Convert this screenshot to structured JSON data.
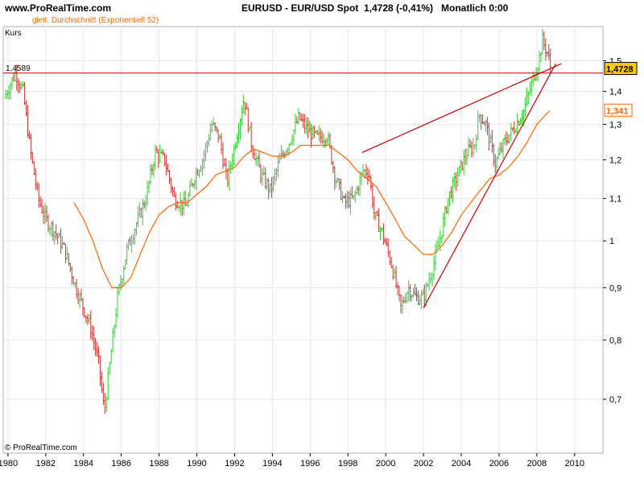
{
  "header": {
    "site": "www.ProRealTime.com",
    "instrument": "EURUSD - EUR/USD Spot",
    "quote": "1,4728 (-0,41%)",
    "period": "Monatlich  0:00"
  },
  "copyright": "© ProRealTime.com",
  "colors": {
    "background": "#ffffff",
    "grid": "#e6e6e6",
    "up_bar": "#33cc33",
    "down_bar": "#cc3333",
    "ema": "#ff6600",
    "trendline": "#cc0000",
    "last_price_box": "#ffcc00"
  },
  "chart_data": {
    "type": "ohlc",
    "legend": {
      "primary": "Kurs",
      "indicator": "gleit. Durchschnitt (Exponentiell 52)"
    },
    "x_ticks": [
      "1980",
      "1982",
      "1984",
      "1986",
      "1988",
      "1990",
      "1992",
      "1994",
      "1996",
      "1998",
      "2000",
      "2002",
      "2004",
      "2006",
      "2008",
      "2010"
    ],
    "y_ticks": [
      "0,7",
      "0,8",
      "0,9",
      "1",
      "1,1",
      "1,2",
      "1,3",
      "1,4",
      "1,5"
    ],
    "y_tick_values": [
      0.7,
      0.8,
      0.9,
      1.0,
      1.1,
      1.2,
      1.3,
      1.4,
      1.5
    ],
    "scale": "log",
    "xlim": [
      1979.75,
      2011.5
    ],
    "ylim": [
      0.62,
      1.62
    ],
    "grid": true,
    "price_path": [
      [
        1979.8,
        1.38
      ],
      [
        1980.1,
        1.42
      ],
      [
        1980.4,
        1.46
      ],
      [
        1980.8,
        1.4
      ],
      [
        1981.2,
        1.22
      ],
      [
        1981.6,
        1.1
      ],
      [
        1982.0,
        1.05
      ],
      [
        1982.5,
        1.02
      ],
      [
        1983.0,
        0.98
      ],
      [
        1983.6,
        0.9
      ],
      [
        1984.0,
        0.86
      ],
      [
        1984.4,
        0.82
      ],
      [
        1984.8,
        0.76
      ],
      [
        1985.1,
        0.68
      ],
      [
        1985.4,
        0.76
      ],
      [
        1985.8,
        0.88
      ],
      [
        1986.3,
        0.98
      ],
      [
        1986.8,
        1.04
      ],
      [
        1987.3,
        1.1
      ],
      [
        1987.8,
        1.22
      ],
      [
        1988.3,
        1.2
      ],
      [
        1988.8,
        1.1
      ],
      [
        1989.4,
        1.08
      ],
      [
        1989.9,
        1.16
      ],
      [
        1990.3,
        1.2
      ],
      [
        1990.8,
        1.3
      ],
      [
        1991.2,
        1.26
      ],
      [
        1991.6,
        1.14
      ],
      [
        1992.0,
        1.24
      ],
      [
        1992.5,
        1.38
      ],
      [
        1992.9,
        1.24
      ],
      [
        1993.4,
        1.16
      ],
      [
        1993.9,
        1.12
      ],
      [
        1994.4,
        1.2
      ],
      [
        1994.9,
        1.25
      ],
      [
        1995.4,
        1.32
      ],
      [
        1995.9,
        1.28
      ],
      [
        1996.4,
        1.26
      ],
      [
        1996.9,
        1.27
      ],
      [
        1997.3,
        1.16
      ],
      [
        1997.8,
        1.09
      ],
      [
        1998.3,
        1.1
      ],
      [
        1998.8,
        1.17
      ],
      [
        1999.1,
        1.17
      ],
      [
        1999.4,
        1.06
      ],
      [
        1999.8,
        1.02
      ],
      [
        2000.3,
        0.95
      ],
      [
        2000.8,
        0.86
      ],
      [
        2001.2,
        0.9
      ],
      [
        2001.6,
        0.88
      ],
      [
        2002.0,
        0.88
      ],
      [
        2002.4,
        0.93
      ],
      [
        2002.8,
        0.99
      ],
      [
        2003.3,
        1.1
      ],
      [
        2003.8,
        1.16
      ],
      [
        2004.3,
        1.22
      ],
      [
        2004.7,
        1.24
      ],
      [
        2004.95,
        1.33
      ],
      [
        2005.3,
        1.3
      ],
      [
        2005.8,
        1.19
      ],
      [
        2006.3,
        1.25
      ],
      [
        2006.8,
        1.29
      ],
      [
        2007.3,
        1.34
      ],
      [
        2007.8,
        1.44
      ],
      [
        2008.1,
        1.5
      ],
      [
        2008.3,
        1.57
      ],
      [
        2008.6,
        1.52
      ],
      [
        2008.75,
        1.47
      ]
    ],
    "ema52_path": [
      [
        1983.5,
        1.09
      ],
      [
        1984.0,
        1.05
      ],
      [
        1984.5,
        1.0
      ],
      [
        1985.0,
        0.94
      ],
      [
        1985.5,
        0.9
      ],
      [
        1986.0,
        0.9
      ],
      [
        1986.5,
        0.92
      ],
      [
        1987.0,
        0.97
      ],
      [
        1987.5,
        1.02
      ],
      [
        1988.0,
        1.06
      ],
      [
        1988.5,
        1.08
      ],
      [
        1989.0,
        1.09
      ],
      [
        1989.5,
        1.09
      ],
      [
        1990.0,
        1.11
      ],
      [
        1990.5,
        1.13
      ],
      [
        1991.0,
        1.16
      ],
      [
        1991.5,
        1.17
      ],
      [
        1992.0,
        1.18
      ],
      [
        1992.5,
        1.21
      ],
      [
        1993.0,
        1.23
      ],
      [
        1993.5,
        1.22
      ],
      [
        1994.0,
        1.21
      ],
      [
        1994.5,
        1.21
      ],
      [
        1995.0,
        1.22
      ],
      [
        1995.5,
        1.24
      ],
      [
        1996.0,
        1.24
      ],
      [
        1996.5,
        1.24
      ],
      [
        1997.0,
        1.24
      ],
      [
        1997.5,
        1.22
      ],
      [
        1998.0,
        1.2
      ],
      [
        1998.5,
        1.17
      ],
      [
        1999.0,
        1.15
      ],
      [
        1999.5,
        1.13
      ],
      [
        2000.0,
        1.09
      ],
      [
        2000.5,
        1.05
      ],
      [
        2001.0,
        1.01
      ],
      [
        2001.5,
        0.99
      ],
      [
        2002.0,
        0.97
      ],
      [
        2002.5,
        0.97
      ],
      [
        2003.0,
        0.99
      ],
      [
        2003.5,
        1.02
      ],
      [
        2004.0,
        1.06
      ],
      [
        2004.5,
        1.09
      ],
      [
        2005.0,
        1.12
      ],
      [
        2005.5,
        1.15
      ],
      [
        2006.0,
        1.16
      ],
      [
        2006.5,
        1.18
      ],
      [
        2007.0,
        1.21
      ],
      [
        2007.5,
        1.25
      ],
      [
        2008.0,
        1.3
      ],
      [
        2008.5,
        1.33
      ],
      [
        2008.7,
        1.34
      ]
    ],
    "horizontal_line": {
      "value": 1.4589,
      "label": "1,4589"
    },
    "trendlines": [
      {
        "from": [
          1998.75,
          1.22
        ],
        "to": [
          2009.3,
          1.49
        ]
      },
      {
        "from": [
          2002.0,
          0.86
        ],
        "to": [
          2009.0,
          1.49
        ]
      }
    ],
    "last_price": {
      "value": 1.4728,
      "label": "1,4728"
    },
    "ema_last": {
      "value": 1.341,
      "label": "1,341"
    }
  }
}
